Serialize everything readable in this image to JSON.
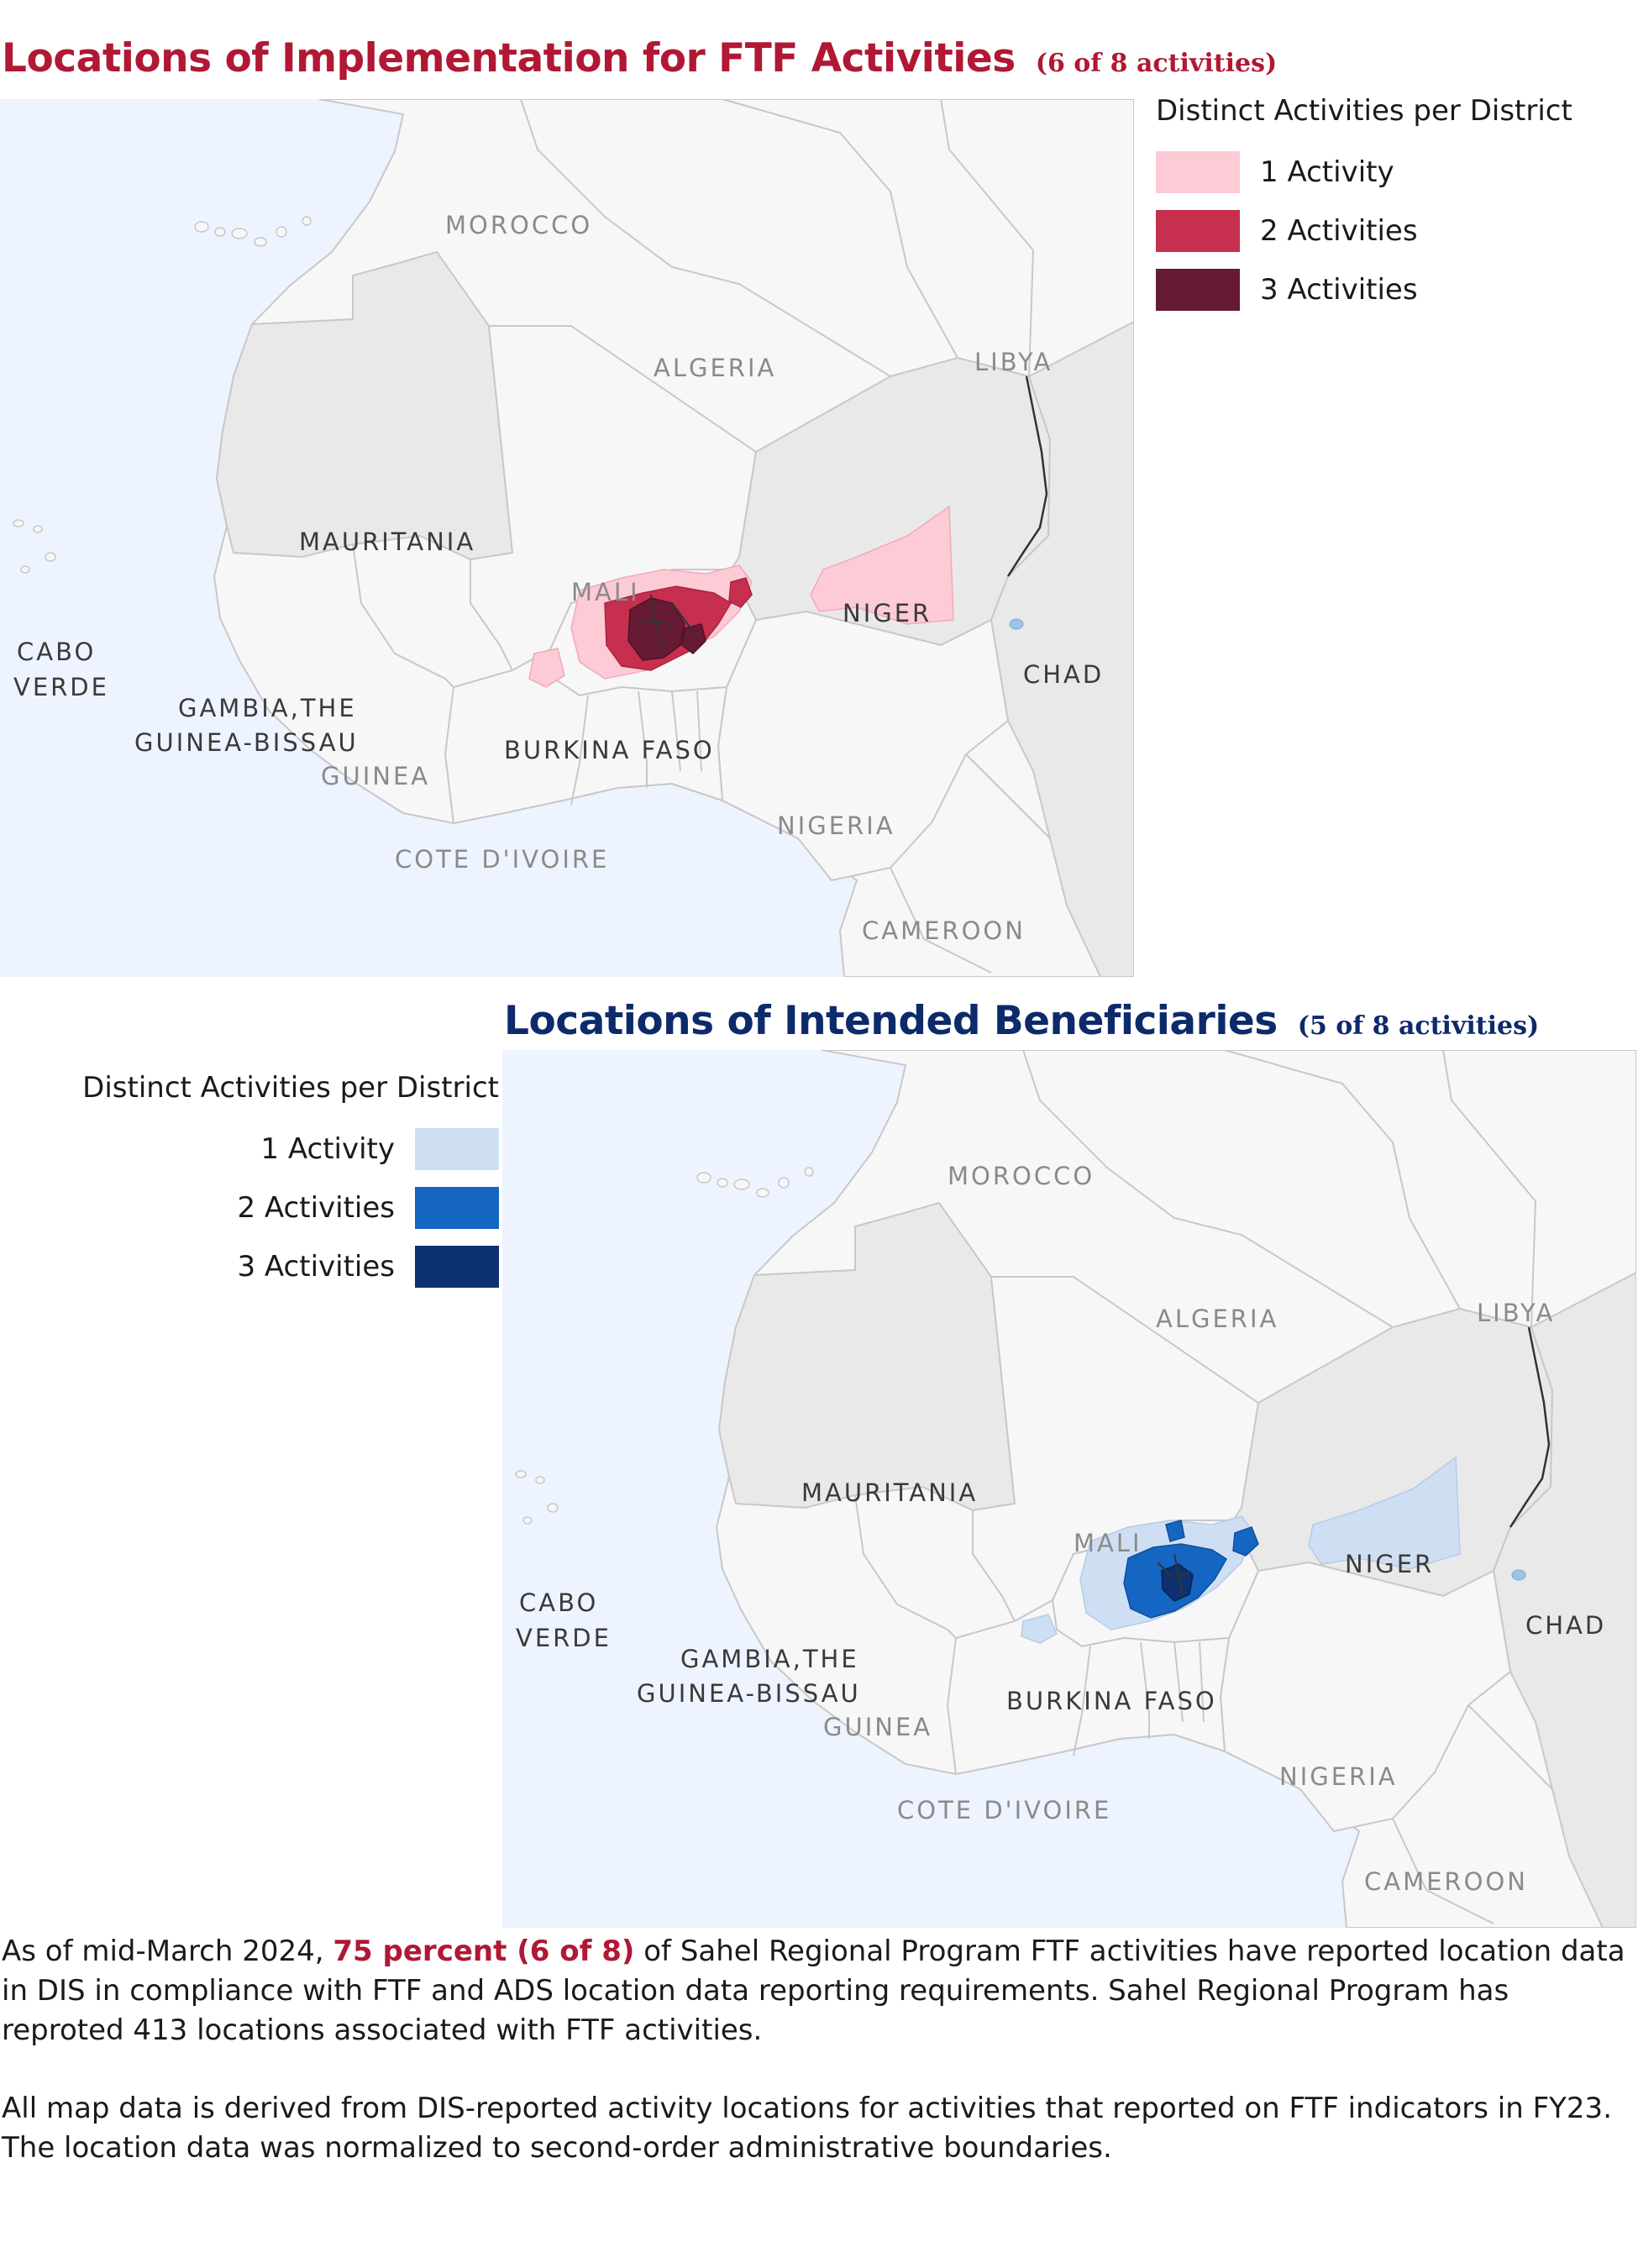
{
  "maps": [
    {
      "title": "Locations of Implementation for FTF Activities",
      "subtitle": "(6 of 8 activities)",
      "legend": {
        "title": "Distinct Activities per District",
        "items": [
          {
            "label": "1 Activity",
            "color": "#fccbd6"
          },
          {
            "label": "2 Activities",
            "color": "#c62f4e"
          },
          {
            "label": "3 Activities",
            "color": "#661a34"
          }
        ]
      }
    },
    {
      "title": "Locations of Intended Beneficiaries",
      "subtitle": "(5 of 8 activities)",
      "legend": {
        "title": "Distinct Activities per District",
        "items": [
          {
            "label": "1 Activity",
            "color": "#cfdff3"
          },
          {
            "label": "2 Activities",
            "color": "#1466c2"
          },
          {
            "label": "3 Activities",
            "color": "#0d3170"
          }
        ]
      }
    }
  ],
  "map_labels": {
    "morocco": "MOROCCO",
    "algeria": "ALGERIA",
    "libya": "LIBYA",
    "mauritania": "MAURITANIA",
    "mali": "MALI",
    "niger": "NIGER",
    "chad": "CHAD",
    "cabo": "CABO",
    "verde": "VERDE",
    "gambia": "GAMBIA,THE",
    "guinea_bissau": "GUINEA-BISSAU",
    "guinea": "GUINEA",
    "burkina": "BURKINA FASO",
    "nigeria": "NIGERIA",
    "cote": "COTE D'IVOIRE",
    "cameroon": "CAMEROON"
  },
  "notes": {
    "p1_before": "As of mid-March 2024,",
    "p1_highlight": "75 percent (6 of 8)",
    "p1_after": "of Sahel Regional Program FTF activities have reported location data in DIS in compliance with FTF and ADS location data reporting requirements. Sahel Regional Program has reproted 413 locations associated with FTF activities.",
    "p2": "All map data is derived from DIS-reported activity locations for activities that reported on FTF indicators in FY23. The location data was normalized to second-order administrative boundaries."
  },
  "colors": {
    "ocean": "#eef4ff",
    "land": "#f7f7f7",
    "land_focus": "#e9e9e9",
    "border": "#c8c8c8",
    "title1": "#b01833",
    "title2": "#0d2a6a"
  }
}
